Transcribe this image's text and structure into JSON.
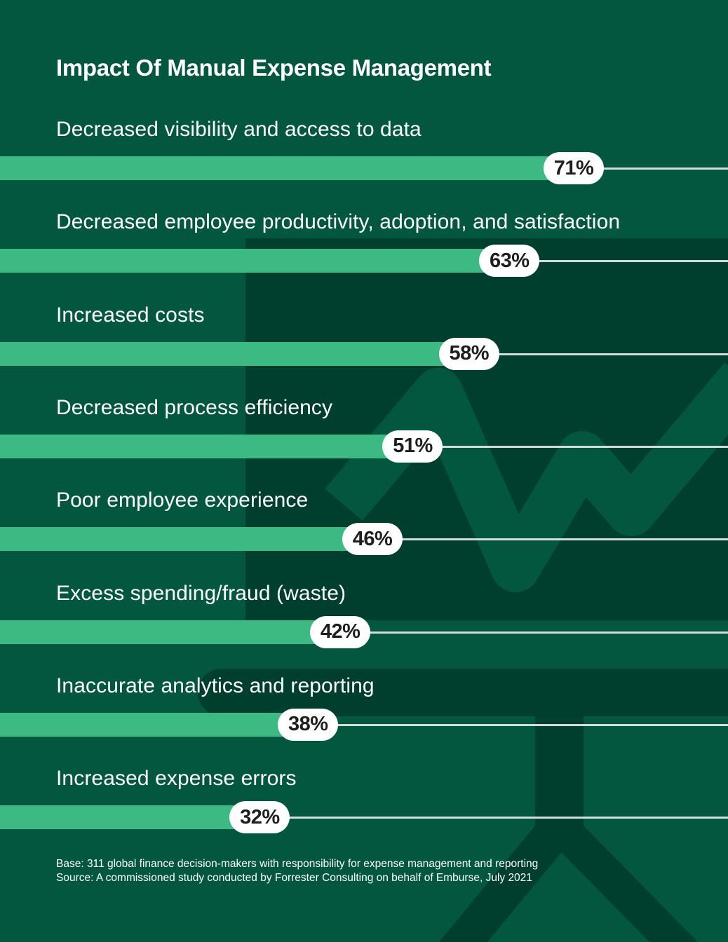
{
  "colors": {
    "background": "#03573f",
    "background_dark": "#003f2e",
    "bar": "#3dba84",
    "pill": "#ffffff",
    "line": "#d3dcd8"
  },
  "chart_data": {
    "type": "bar",
    "orientation": "horizontal",
    "title": "Impact Of Manual Expense Management",
    "xlabel": "",
    "ylabel": "",
    "xlim": [
      0,
      100
    ],
    "unit": "%",
    "categories": [
      "Decreased visibility and access to data",
      "Decreased employee productivity, adoption, and satisfaction",
      "Increased costs",
      "Decreased process efficiency",
      "Poor employee experience",
      "Excess spending/fraud (waste)",
      "Inaccurate analytics and reporting",
      "Increased expense errors"
    ],
    "values": [
      71,
      63,
      58,
      51,
      46,
      42,
      38,
      32
    ],
    "labels": [
      "71%",
      "63%",
      "58%",
      "51%",
      "46%",
      "42%",
      "38%",
      "32%"
    ],
    "grid": false,
    "legend": "none"
  },
  "footer": {
    "base": "Base: 311 global finance decision-makers with responsibility for expense management and reporting",
    "source": "Source: A commissioned study conducted by Forrester Consulting on behalf of Emburse, July 2021"
  }
}
